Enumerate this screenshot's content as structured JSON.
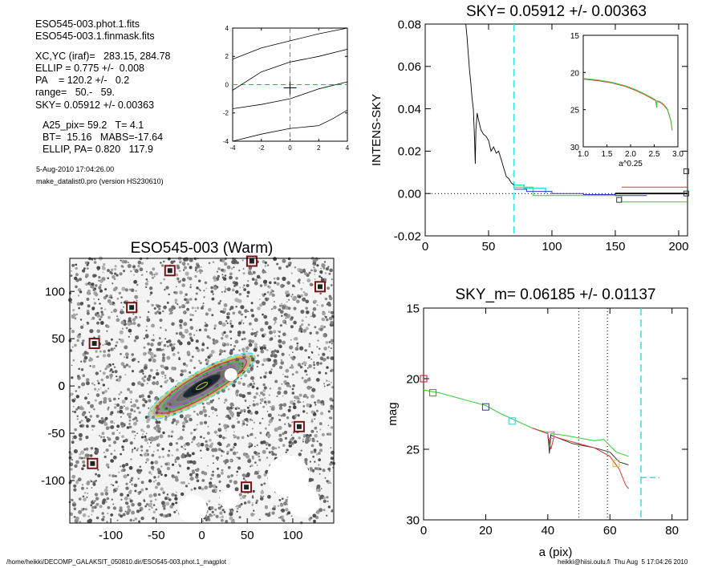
{
  "header": {
    "file1": "ESO545-003.phot.1.fits",
    "file2": "ESO545-003.1.finmask.fits",
    "xcyc": "XC,YC (iraf)=   283.15, 284.78",
    "ellip": "ELLIP = 0.775 +/-  0.008",
    "pa": "PA    = 120.2 +/-   0.2",
    "range": "range=   50.-   59.",
    "sky": "SKY= 0.05912 +/- 0.00363",
    "a25": "A25_pix= 59.2   T= 4.1",
    "bt": "BT=  15.16   MABS=-17.64",
    "ellip_pa": "ELLIP, PA= 0.820   117.9",
    "date": "5-Aug-2010 17:04:26.00",
    "program": "make_datalist0.pro (version HS230610)"
  },
  "footer": {
    "path": "/home/heikki/DECOMP_GALAKSIT_050810.dir/ESO545-003.phot.1_magplot",
    "user": "heikki@hiisi.oulu.fi  Thu Aug  5 17:04:26 2010"
  },
  "chart_data": [
    {
      "type": "line",
      "id": "center-plot",
      "title": "",
      "xlim": [
        -4,
        4
      ],
      "ylim": [
        -4,
        4
      ],
      "xticks": [
        "-4",
        "-2",
        "0",
        "2",
        "4"
      ],
      "yticks": [
        "-4",
        "-2",
        "0",
        "2",
        "4"
      ],
      "series": [
        {
          "values": [
            [
              -4,
              1.8
            ],
            [
              -2,
              2.6
            ],
            [
              0,
              3.1
            ],
            [
              2,
              3.6
            ],
            [
              4,
              4.0
            ]
          ]
        },
        {
          "values": [
            [
              -4,
              -0.4
            ],
            [
              -2,
              0.9
            ],
            [
              0,
              1.6
            ],
            [
              2,
              2.0
            ],
            [
              4,
              2.5
            ]
          ]
        },
        {
          "values": [
            [
              -4,
              -1.7
            ],
            [
              -2,
              -1.4
            ],
            [
              0,
              -1.0
            ],
            [
              2,
              -0.3
            ],
            [
              4,
              0.2
            ]
          ]
        },
        {
          "values": [
            [
              -4,
              -4.0
            ],
            [
              -2,
              -3.5
            ],
            [
              0,
              -3.1
            ],
            [
              2,
              -2.9
            ],
            [
              3,
              -2.4
            ],
            [
              4,
              -1.8
            ]
          ]
        }
      ],
      "crosshair": [
        0,
        0
      ]
    },
    {
      "type": "line",
      "id": "sky-profile",
      "title": "SKY= 0.05912 +/- 0.00363",
      "xlabel": "",
      "ylabel": "INTENS-SKY",
      "xlim": [
        0,
        207
      ],
      "ylim": [
        -0.02,
        0.08
      ],
      "xticks": [
        "0",
        "50",
        "100",
        "150",
        "200"
      ],
      "yticks": [
        "-0.02",
        "0.00",
        "0.02",
        "0.04",
        "0.06",
        "0.08"
      ],
      "vline": 70,
      "profile": [
        [
          32,
          0.08
        ],
        [
          33,
          0.074
        ],
        [
          34,
          0.066
        ],
        [
          35,
          0.058
        ],
        [
          36,
          0.052
        ],
        [
          37,
          0.045
        ],
        [
          38,
          0.04
        ],
        [
          39,
          0.025
        ],
        [
          39.5,
          0.014
        ],
        [
          40,
          0.03
        ],
        [
          41,
          0.038
        ],
        [
          42,
          0.035
        ],
        [
          44,
          0.03
        ],
        [
          46,
          0.028
        ],
        [
          48,
          0.027
        ],
        [
          50,
          0.025
        ],
        [
          52,
          0.02
        ],
        [
          54,
          0.022
        ],
        [
          56,
          0.019
        ],
        [
          58,
          0.02
        ],
        [
          60,
          0.016
        ],
        [
          62,
          0.012
        ],
        [
          64,
          0.008
        ],
        [
          66,
          0.007
        ],
        [
          68,
          0.005
        ],
        [
          70,
          0.004
        ]
      ],
      "blue_steps": [
        [
          70,
          0.002
        ],
        [
          80,
          0.002
        ],
        [
          80,
          0.001
        ],
        [
          100,
          0.001
        ],
        [
          100,
          0.0
        ],
        [
          125,
          0.0
        ],
        [
          125,
          -0.0005
        ],
        [
          150,
          -0.0005
        ],
        [
          150,
          -0.001
        ],
        [
          175,
          -0.001
        ]
      ],
      "green_steps": [
        [
          70,
          0.003
        ],
        [
          85,
          0.003
        ],
        [
          85,
          -0.001
        ],
        [
          155,
          -0.001
        ],
        [
          155,
          -0.004
        ],
        [
          207,
          -0.004
        ]
      ],
      "cyan_steps": [
        [
          70,
          0.004
        ],
        [
          78,
          0.004
        ],
        [
          78,
          0.0025
        ],
        [
          95,
          0.0025
        ],
        [
          95,
          0.0
        ]
      ],
      "red_line": [
        [
          155,
          0.003
        ],
        [
          207,
          0.003
        ]
      ],
      "black_line": [
        [
          150,
          0.0
        ],
        [
          207,
          0.0
        ]
      ],
      "squares": [
        [
          153,
          -0.003
        ],
        [
          206,
          0.0
        ],
        [
          206,
          0.0105
        ]
      ],
      "inset": {
        "xlabel": "a^0.25",
        "xlim": [
          1.0,
          3.0
        ],
        "ylim": [
          15,
          30
        ],
        "xticks": [
          "1.0",
          "1.5",
          "2.0",
          "2.5",
          "3.0"
        ],
        "yticks": [
          "15",
          "20",
          "25",
          "30"
        ],
        "profile": [
          [
            1.0,
            20.9
          ],
          [
            1.3,
            21.1
          ],
          [
            1.6,
            21.4
          ],
          [
            1.9,
            21.9
          ],
          [
            2.1,
            22.4
          ],
          [
            2.3,
            23.0
          ],
          [
            2.45,
            23.5
          ],
          [
            2.53,
            23.8
          ],
          [
            2.55,
            24.7
          ],
          [
            2.56,
            23.9
          ],
          [
            2.62,
            24.0
          ],
          [
            2.7,
            24.4
          ],
          [
            2.78,
            25.0
          ],
          [
            2.85,
            26.5
          ],
          [
            2.88,
            27.8
          ]
        ]
      }
    },
    {
      "type": "heatmap",
      "id": "galaxy-image",
      "title": "ESO545-003 (Warm)",
      "xlim": [
        -145,
        145
      ],
      "ylim": [
        -145,
        135
      ],
      "xticks": [
        "-100",
        "-50",
        "0",
        "50",
        "100"
      ],
      "yticks": [
        "-100",
        "-50",
        "0",
        "50",
        "100"
      ],
      "ellipse": {
        "center": [
          0,
          0
        ],
        "a": 68,
        "ellip": 0.775,
        "pa": 30.2
      },
      "masked_stars": [
        [
          55,
          132
        ],
        [
          -35,
          122
        ],
        [
          130,
          105
        ],
        [
          -77,
          83
        ],
        [
          -118,
          45
        ],
        [
          107,
          -43
        ],
        [
          -120,
          -82
        ],
        [
          49,
          -107
        ]
      ]
    },
    {
      "type": "line",
      "id": "magnitude-profile",
      "title": "SKY_m=  0.06185 +/- 0.01137",
      "xlabel": "a (pix)",
      "ylabel": "mag",
      "xlim": [
        0,
        85
      ],
      "ylim": [
        30,
        15
      ],
      "xticks": [
        "0",
        "20",
        "40",
        "60",
        "80"
      ],
      "yticks": [
        "15",
        "20",
        "25",
        "30"
      ],
      "vlines_dotted": [
        50,
        59.2
      ],
      "vline_dashed": 70,
      "sky_marker": [
        [
          70,
          27
        ],
        [
          76,
          27
        ]
      ],
      "green": [
        [
          0,
          20.8
        ],
        [
          5,
          21.0
        ],
        [
          10,
          21.3
        ],
        [
          15,
          21.6
        ],
        [
          20,
          21.9
        ],
        [
          25,
          22.5
        ],
        [
          30,
          23.0
        ],
        [
          35,
          23.5
        ],
        [
          38,
          23.7
        ],
        [
          40,
          23.8
        ],
        [
          40.5,
          24.7
        ],
        [
          41,
          23.9
        ],
        [
          45,
          24.0
        ],
        [
          50,
          24.2
        ],
        [
          55,
          24.4
        ],
        [
          58,
          24.3
        ],
        [
          62,
          25.2
        ],
        [
          66,
          25.5
        ]
      ],
      "red": [
        [
          35,
          23.5
        ],
        [
          40,
          23.9
        ],
        [
          41,
          25.0
        ],
        [
          42,
          24.1
        ],
        [
          45,
          24.3
        ],
        [
          50,
          24.6
        ],
        [
          55,
          24.9
        ],
        [
          60,
          25.5
        ],
        [
          63,
          26.4
        ],
        [
          65,
          27.5
        ],
        [
          66,
          27.8
        ]
      ],
      "black": [
        [
          40,
          23.8
        ],
        [
          40.5,
          25.3
        ],
        [
          41,
          24.0
        ],
        [
          48,
          24.6
        ],
        [
          55,
          24.9
        ],
        [
          60,
          25.2
        ],
        [
          63,
          25.9
        ],
        [
          66,
          26.1
        ]
      ],
      "squares": [
        [
          0,
          20,
          "#d11"
        ],
        [
          3,
          21,
          "#1a1"
        ],
        [
          20,
          22,
          "#33c"
        ],
        [
          28.5,
          23,
          "#3cc"
        ],
        [
          41,
          24,
          "#c7a"
        ],
        [
          62,
          26,
          "#cc3"
        ]
      ]
    }
  ]
}
